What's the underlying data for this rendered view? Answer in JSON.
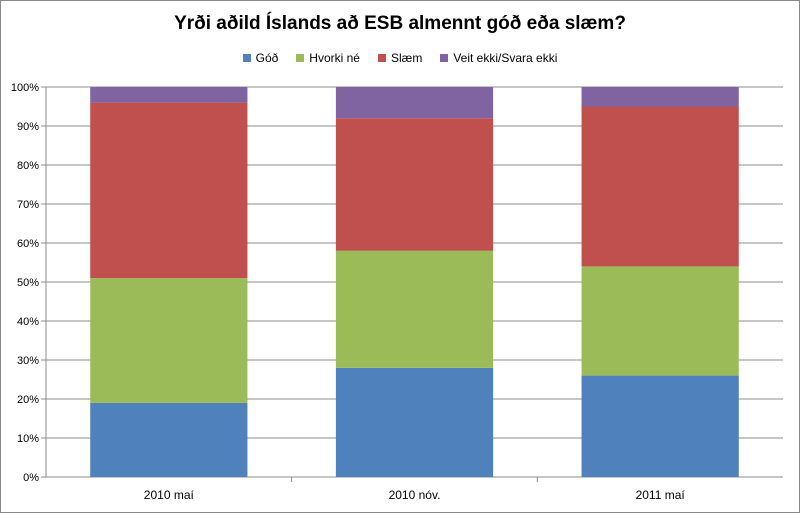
{
  "chart_data": {
    "type": "bar",
    "stacked": true,
    "title": "Yrði aðild Íslands að ESB almennt góð eða slæm?",
    "categories": [
      "2010 maí",
      "2010 nóv.",
      "2011 maí"
    ],
    "series": [
      {
        "name": "Góð",
        "color": "#4f81bd",
        "values": [
          19,
          28,
          26
        ]
      },
      {
        "name": "Hvorki né",
        "color": "#9bbb59",
        "values": [
          32,
          30,
          28
        ]
      },
      {
        "name": "Slæm",
        "color": "#c0504d",
        "values": [
          45,
          34,
          41
        ]
      },
      {
        "name": "Veit ekki/Svara ekki",
        "color": "#8064a2",
        "values": [
          4,
          8,
          5
        ]
      }
    ],
    "yticks": [
      "0%",
      "10%",
      "20%",
      "30%",
      "40%",
      "50%",
      "60%",
      "70%",
      "80%",
      "90%",
      "100%"
    ],
    "ylim": [
      0,
      100
    ],
    "grid": true,
    "legend_position": "top"
  }
}
